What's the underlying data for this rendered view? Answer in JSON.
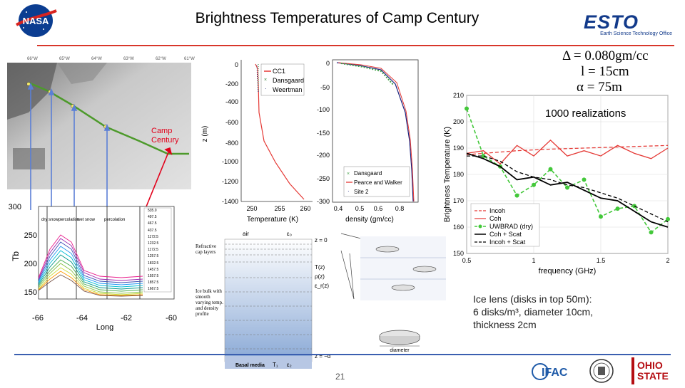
{
  "header": {
    "title": "Brightness Temperatures of Camp Century",
    "esto_logo": "ESTO",
    "esto_sub": "Earth Science Technology Office"
  },
  "params": {
    "delta": "Δ = 0.080gm/cc",
    "l": "l = 15cm",
    "alpha": "α = 75m"
  },
  "map": {
    "site_label": "Camp Century",
    "top_ticks": [
      "66°W",
      "65°W",
      "64°W",
      "63°W",
      "62°W",
      "61°W"
    ]
  },
  "tb_chart": {
    "ylabel": "Tb",
    "xlabel": "Long",
    "yticks": [
      "300",
      "250",
      "200",
      "150"
    ],
    "xticks": [
      "-66",
      "-64",
      "-62",
      "-60"
    ],
    "zones": [
      "dry snow",
      "percolation",
      "wet snow",
      "percolation"
    ],
    "legend": [
      "535.0",
      "497.5",
      "467.5",
      "437.5",
      "1172.5",
      "1232.5",
      "1172.5",
      "1257.5",
      "1832.5",
      "1457.5",
      "1557.5",
      "1857.5",
      "1667.5"
    ]
  },
  "temp_chart": {
    "ylabel": "z (m)",
    "xlabel": "Temperature (K)",
    "yticks": [
      "0",
      "-200",
      "-400",
      "-600",
      "-800",
      "-1000",
      "-1200",
      "-1400"
    ],
    "xticks": [
      "250",
      "255",
      "260"
    ],
    "legend": [
      "CC1",
      "Dansgaard",
      "Weertman"
    ]
  },
  "density_chart": {
    "xlabel": "density (gm/cc)",
    "yticks": [
      "0",
      "-50",
      "-100",
      "-150",
      "-200",
      "-250",
      "-300"
    ],
    "xticks": [
      "0.4",
      "0.5",
      "0.6",
      "0.8"
    ],
    "legend": [
      "Dansgaard",
      "Pearce and Walker",
      "Site 2"
    ]
  },
  "bt_chart": {
    "ylabel": "Brightness Temperature (K)",
    "xlabel": "frequency (GHz)",
    "annotation": "1000 realizations",
    "xticks": [
      "0.5",
      "1",
      "1.5",
      "2"
    ],
    "yticks": [
      "150",
      "160",
      "170",
      "180",
      "190",
      "200",
      "210"
    ],
    "legend": [
      "Incoh",
      "Coh",
      "UWBRAD (dry)",
      "Coh + Scat",
      "Incoh + Scat"
    ]
  },
  "diagram": {
    "air": "air",
    "eps0": "ε₀",
    "z0": "z = 0",
    "refl": "Refractive cap layers",
    "bulk": "Ice bulk with smooth varying temp. and density profile",
    "gamma": "T(z)",
    "rho": "ρ(z)",
    "eps": "ε_r(z)",
    "basal": "Basal media",
    "t1": "T₁",
    "e2": "ε₂",
    "zd": "z = −d",
    "diameter": "diameter"
  },
  "ice_note": {
    "line1": "Ice lens (disks in top 50m):",
    "line2": "6 disks/m³, diameter 10cm,",
    "line3": "thickness 2cm"
  },
  "footer": {
    "page": "21"
  },
  "chart_data": [
    {
      "type": "line",
      "title": "",
      "xlabel": "frequency (GHz)",
      "ylabel": "Brightness Temperature (K)",
      "xlim": [
        0.5,
        2
      ],
      "ylim": [
        150,
        210
      ],
      "x": [
        0.5,
        0.625,
        0.75,
        0.875,
        1.0,
        1.125,
        1.25,
        1.375,
        1.5,
        1.625,
        1.75,
        1.875,
        2.0
      ],
      "series": [
        {
          "name": "Incoh",
          "values": [
            187.5,
            188,
            188.5,
            189,
            189.3,
            189.6,
            189.8,
            190,
            190.2,
            190.4,
            190.6,
            190.8,
            191
          ]
        },
        {
          "name": "Coh",
          "values": [
            188,
            189,
            184,
            191,
            187,
            193,
            187,
            189,
            187,
            191,
            188,
            186,
            190
          ]
        },
        {
          "name": "UWBRAD (dry)",
          "values": [
            205,
            187,
            183,
            172,
            176,
            182,
            175,
            178,
            164,
            167,
            168,
            158,
            163
          ]
        },
        {
          "name": "Coh + Scat",
          "values": [
            188,
            186,
            183,
            178,
            179,
            176,
            177,
            174,
            171,
            170,
            166,
            162,
            160
          ]
        },
        {
          "name": "Incoh + Scat",
          "values": [
            187,
            187,
            185,
            181,
            179,
            178,
            176,
            175,
            173,
            171,
            168,
            165,
            162
          ]
        }
      ]
    }
  ]
}
